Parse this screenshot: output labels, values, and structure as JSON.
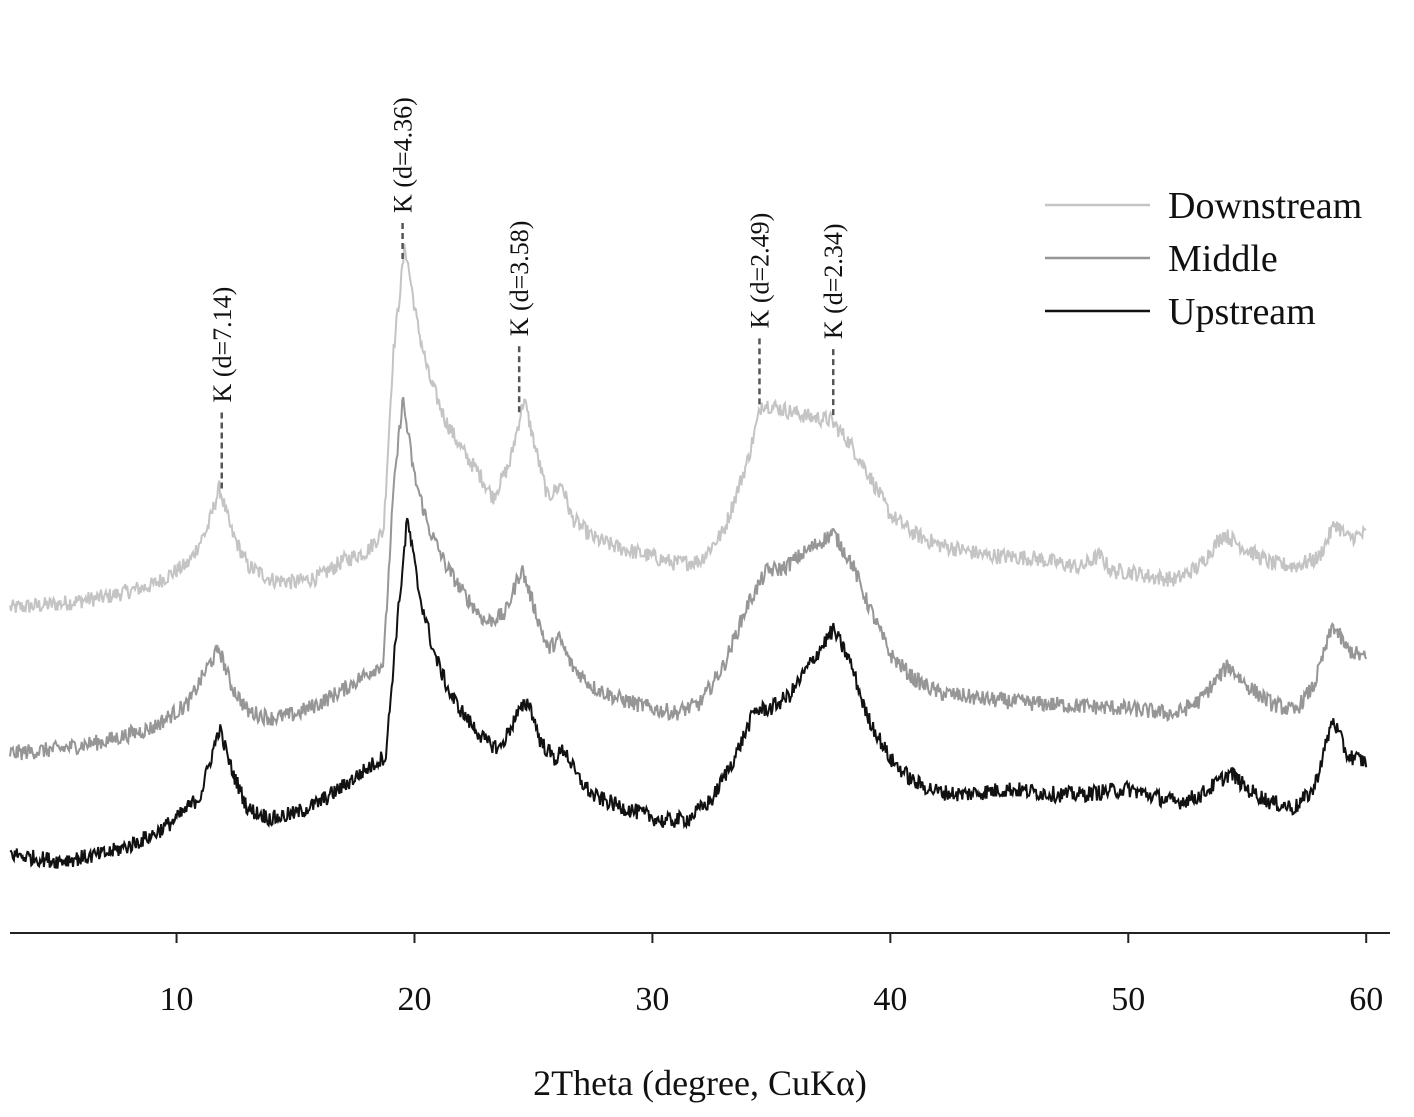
{
  "chart_data": {
    "type": "line",
    "title": "",
    "xlabel": "2Theta (degree, CuKα)",
    "ylabel": "",
    "xlim": [
      3,
      61
    ],
    "xticks": [
      10,
      20,
      30,
      40,
      50,
      60
    ],
    "y_axis_visible": false,
    "grid": false,
    "legend_position": "top-right",
    "series": [
      {
        "name": "Downstream",
        "color": "#c4c4c4",
        "points": [
          [
            3,
            0.03
          ],
          [
            5,
            0.06
          ],
          [
            7,
            0.11
          ],
          [
            9,
            0.2
          ],
          [
            10.5,
            0.36
          ],
          [
            11.3,
            0.62
          ],
          [
            11.8,
            0.92
          ],
          [
            12.3,
            0.6
          ],
          [
            13,
            0.34
          ],
          [
            14,
            0.24
          ],
          [
            15,
            0.22
          ],
          [
            16,
            0.26
          ],
          [
            17,
            0.38
          ],
          [
            18,
            0.45
          ],
          [
            18.7,
            0.6
          ],
          [
            19.1,
            1.9
          ],
          [
            19.6,
            2.72
          ],
          [
            20.1,
            2.15
          ],
          [
            20.6,
            1.75
          ],
          [
            21.3,
            1.42
          ],
          [
            22,
            1.2
          ],
          [
            22.8,
            1.0
          ],
          [
            23.3,
            0.85
          ],
          [
            24,
            1.1
          ],
          [
            24.6,
            1.58
          ],
          [
            25.1,
            1.2
          ],
          [
            25.6,
            0.85
          ],
          [
            26.2,
            0.95
          ],
          [
            26.6,
            0.7
          ],
          [
            27.5,
            0.55
          ],
          [
            28.5,
            0.48
          ],
          [
            30,
            0.41
          ],
          [
            31,
            0.36
          ],
          [
            32,
            0.38
          ],
          [
            33,
            0.6
          ],
          [
            34,
            1.12
          ],
          [
            34.6,
            1.55
          ],
          [
            35.5,
            1.5
          ],
          [
            36.5,
            1.45
          ],
          [
            37.5,
            1.42
          ],
          [
            38.3,
            1.25
          ],
          [
            39,
            1.05
          ],
          [
            40,
            0.72
          ],
          [
            41,
            0.58
          ],
          [
            42,
            0.5
          ],
          [
            44,
            0.42
          ],
          [
            46,
            0.4
          ],
          [
            48,
            0.33
          ],
          [
            48.8,
            0.42
          ],
          [
            49.3,
            0.3
          ],
          [
            50,
            0.3
          ],
          [
            51,
            0.26
          ],
          [
            52,
            0.24
          ],
          [
            53,
            0.34
          ],
          [
            54,
            0.58
          ],
          [
            55,
            0.46
          ],
          [
            56,
            0.36
          ],
          [
            57,
            0.34
          ],
          [
            58,
            0.4
          ],
          [
            58.7,
            0.66
          ],
          [
            59.2,
            0.55
          ],
          [
            60,
            0.58
          ]
        ]
      },
      {
        "name": "Middle",
        "color": "#969696",
        "points": [
          [
            3,
            0.05
          ],
          [
            5,
            0.08
          ],
          [
            7,
            0.14
          ],
          [
            9,
            0.24
          ],
          [
            10.5,
            0.42
          ],
          [
            11.4,
            0.72
          ],
          [
            11.8,
            0.82
          ],
          [
            12.3,
            0.55
          ],
          [
            13,
            0.36
          ],
          [
            14,
            0.31
          ],
          [
            15,
            0.34
          ],
          [
            16,
            0.42
          ],
          [
            17,
            0.52
          ],
          [
            18,
            0.64
          ],
          [
            18.7,
            0.72
          ],
          [
            19.1,
            1.95
          ],
          [
            19.5,
            2.68
          ],
          [
            20,
            2.1
          ],
          [
            20.6,
            1.72
          ],
          [
            21.3,
            1.45
          ],
          [
            22,
            1.25
          ],
          [
            23,
            1.02
          ],
          [
            23.8,
            1.08
          ],
          [
            24.5,
            1.42
          ],
          [
            25,
            1.15
          ],
          [
            25.6,
            0.82
          ],
          [
            26.1,
            0.9
          ],
          [
            26.6,
            0.7
          ],
          [
            27.5,
            0.54
          ],
          [
            28.5,
            0.46
          ],
          [
            30,
            0.38
          ],
          [
            31,
            0.35
          ],
          [
            32,
            0.42
          ],
          [
            33,
            0.7
          ],
          [
            34,
            1.15
          ],
          [
            34.8,
            1.4
          ],
          [
            35.5,
            1.42
          ],
          [
            36.5,
            1.55
          ],
          [
            37.6,
            1.68
          ],
          [
            38.4,
            1.45
          ],
          [
            39,
            1.18
          ],
          [
            40,
            0.78
          ],
          [
            41,
            0.6
          ],
          [
            42,
            0.5
          ],
          [
            44,
            0.45
          ],
          [
            46,
            0.42
          ],
          [
            48,
            0.4
          ],
          [
            50,
            0.38
          ],
          [
            52,
            0.34
          ],
          [
            53,
            0.44
          ],
          [
            54.2,
            0.7
          ],
          [
            55,
            0.55
          ],
          [
            56,
            0.42
          ],
          [
            57,
            0.36
          ],
          [
            57.8,
            0.55
          ],
          [
            58.6,
            1.0
          ],
          [
            59.2,
            0.82
          ],
          [
            60,
            0.75
          ]
        ]
      },
      {
        "name": "Upstream",
        "color": "#111111",
        "points": [
          [
            3,
            0.12
          ],
          [
            4,
            0.09
          ],
          [
            5,
            0.07
          ],
          [
            6,
            0.09
          ],
          [
            7,
            0.12
          ],
          [
            8,
            0.18
          ],
          [
            9,
            0.26
          ],
          [
            10,
            0.38
          ],
          [
            11,
            0.55
          ],
          [
            11.8,
            1.05
          ],
          [
            12.3,
            0.75
          ],
          [
            13,
            0.45
          ],
          [
            14,
            0.38
          ],
          [
            15,
            0.42
          ],
          [
            16,
            0.5
          ],
          [
            17,
            0.62
          ],
          [
            18,
            0.75
          ],
          [
            18.8,
            0.85
          ],
          [
            19.2,
            1.7
          ],
          [
            19.7,
            2.6
          ],
          [
            20.2,
            2.05
          ],
          [
            20.8,
            1.62
          ],
          [
            21.5,
            1.3
          ],
          [
            22.2,
            1.12
          ],
          [
            23,
            0.95
          ],
          [
            23.6,
            0.9
          ],
          [
            24.3,
            1.15
          ],
          [
            24.8,
            1.25
          ],
          [
            25.3,
            0.95
          ],
          [
            25.9,
            0.82
          ],
          [
            26.3,
            0.9
          ],
          [
            26.8,
            0.7
          ],
          [
            27.5,
            0.55
          ],
          [
            28.5,
            0.48
          ],
          [
            29.5,
            0.42
          ],
          [
            30.5,
            0.36
          ],
          [
            31.5,
            0.38
          ],
          [
            32.5,
            0.52
          ],
          [
            33.5,
            0.85
          ],
          [
            34.3,
            1.18
          ],
          [
            35,
            1.2
          ],
          [
            35.8,
            1.3
          ],
          [
            36.6,
            1.52
          ],
          [
            37.6,
            1.78
          ],
          [
            38.3,
            1.55
          ],
          [
            39,
            1.15
          ],
          [
            40,
            0.82
          ],
          [
            41,
            0.65
          ],
          [
            42,
            0.58
          ],
          [
            43,
            0.56
          ],
          [
            44,
            0.58
          ],
          [
            45,
            0.6
          ],
          [
            46,
            0.58
          ],
          [
            47,
            0.56
          ],
          [
            48,
            0.56
          ],
          [
            49,
            0.58
          ],
          [
            50,
            0.6
          ],
          [
            51,
            0.55
          ],
          [
            52,
            0.5
          ],
          [
            53,
            0.55
          ],
          [
            54.3,
            0.72
          ],
          [
            55,
            0.6
          ],
          [
            56,
            0.5
          ],
          [
            57,
            0.46
          ],
          [
            57.8,
            0.6
          ],
          [
            58.6,
            1.12
          ],
          [
            59.2,
            0.85
          ],
          [
            60,
            0.8
          ]
        ]
      }
    ],
    "peak_annotations": [
      {
        "label": "K (d=7.14)",
        "x": 11.9
      },
      {
        "label": "K (d=4.36)",
        "x": 19.5
      },
      {
        "label": "K (d=3.58)",
        "x": 24.4
      },
      {
        "label": "K (d=2.49)",
        "x": 34.5
      },
      {
        "label": "K (d=2.34)",
        "x": 37.6
      }
    ]
  }
}
